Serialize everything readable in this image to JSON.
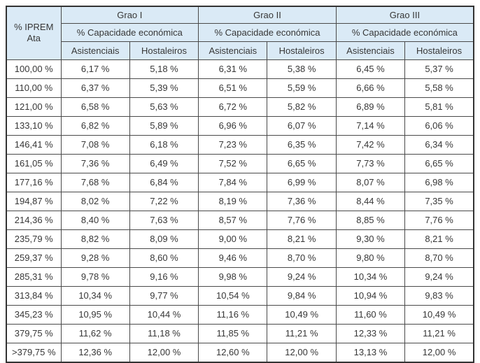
{
  "colors": {
    "header_bg": "#daeaf6",
    "inner_border": "#4a4a4a",
    "outer_border": "#333333",
    "text": "#373737"
  },
  "table": {
    "corner_header": "% IPREM\nAta",
    "groups": [
      {
        "label": "Grao I",
        "sub_label": "% Capacidade económica"
      },
      {
        "label": "Grao II",
        "sub_label": "% Capacidade económica"
      },
      {
        "label": "Grao III",
        "sub_label": "% Capacidade económica"
      }
    ],
    "col_headers": [
      "Asistenciais",
      "Hostaleiros",
      "Asistenciais",
      "Hostaleiros",
      "Asistenciais",
      "Hostaleiros"
    ],
    "rows": [
      {
        "iprem": "100,00 %",
        "values": [
          "6,17 %",
          "5,18 %",
          "6,31 %",
          "5,38 %",
          "6,45 %",
          "5,37 %"
        ]
      },
      {
        "iprem": "110,00 %",
        "values": [
          "6,37 %",
          "5,39 %",
          "6,51 %",
          "5,59 %",
          "6,66 %",
          "5,58 %"
        ]
      },
      {
        "iprem": "121,00 %",
        "values": [
          "6,58 %",
          "5,63 %",
          "6,72 %",
          "5,82 %",
          "6,89 %",
          "5,81 %"
        ]
      },
      {
        "iprem": "133,10 %",
        "values": [
          "6,82 %",
          "5,89 %",
          "6,96 %",
          "6,07 %",
          "7,14 %",
          "6,06 %"
        ]
      },
      {
        "iprem": "146,41 %",
        "values": [
          "7,08 %",
          "6,18 %",
          "7,23 %",
          "6,35 %",
          "7,42 %",
          "6,34 %"
        ]
      },
      {
        "iprem": "161,05 %",
        "values": [
          "7,36 %",
          "6,49 %",
          "7,52 %",
          "6,65 %",
          "7,73 %",
          "6,65 %"
        ]
      },
      {
        "iprem": "177,16 %",
        "values": [
          "7,68 %",
          "6,84 %",
          "7,84 %",
          "6,99 %",
          "8,07 %",
          "6,98 %"
        ]
      },
      {
        "iprem": "194,87 %",
        "values": [
          "8,02 %",
          "7,22 %",
          "8,19 %",
          "7,36 %",
          "8,44 %",
          "7,35 %"
        ]
      },
      {
        "iprem": "214,36 %",
        "values": [
          "8,40 %",
          "7,63 %",
          "8,57 %",
          "7,76 %",
          "8,85 %",
          "7,76 %"
        ]
      },
      {
        "iprem": "235,79 %",
        "values": [
          "8,82 %",
          "8,09 %",
          "9,00 %",
          "8,21 %",
          "9,30 %",
          "8,21 %"
        ]
      },
      {
        "iprem": "259,37 %",
        "values": [
          "9,28 %",
          "8,60 %",
          "9,46 %",
          "8,70 %",
          "9,80 %",
          "8,70 %"
        ]
      },
      {
        "iprem": "285,31 %",
        "values": [
          "9,78 %",
          "9,16 %",
          "9,98 %",
          "9,24 %",
          "10,34 %",
          "9,24 %"
        ]
      },
      {
        "iprem": "313,84 %",
        "values": [
          "10,34 %",
          "9,77 %",
          "10,54 %",
          "9,84 %",
          "10,94 %",
          "9,83 %"
        ]
      },
      {
        "iprem": "345,23 %",
        "values": [
          "10,95 %",
          "10,44 %",
          "11,16 %",
          "10,49 %",
          "11,60 %",
          "10,49 %"
        ]
      },
      {
        "iprem": "379,75 %",
        "values": [
          "11,62 %",
          "11,18 %",
          "11,85 %",
          "11,21 %",
          "12,33 %",
          "11,21 %"
        ]
      },
      {
        "iprem": ">379,75 %",
        "values": [
          "12,36 %",
          "12,00 %",
          "12,60 %",
          "12,00 %",
          "13,13 %",
          "12,00 %"
        ]
      }
    ]
  }
}
